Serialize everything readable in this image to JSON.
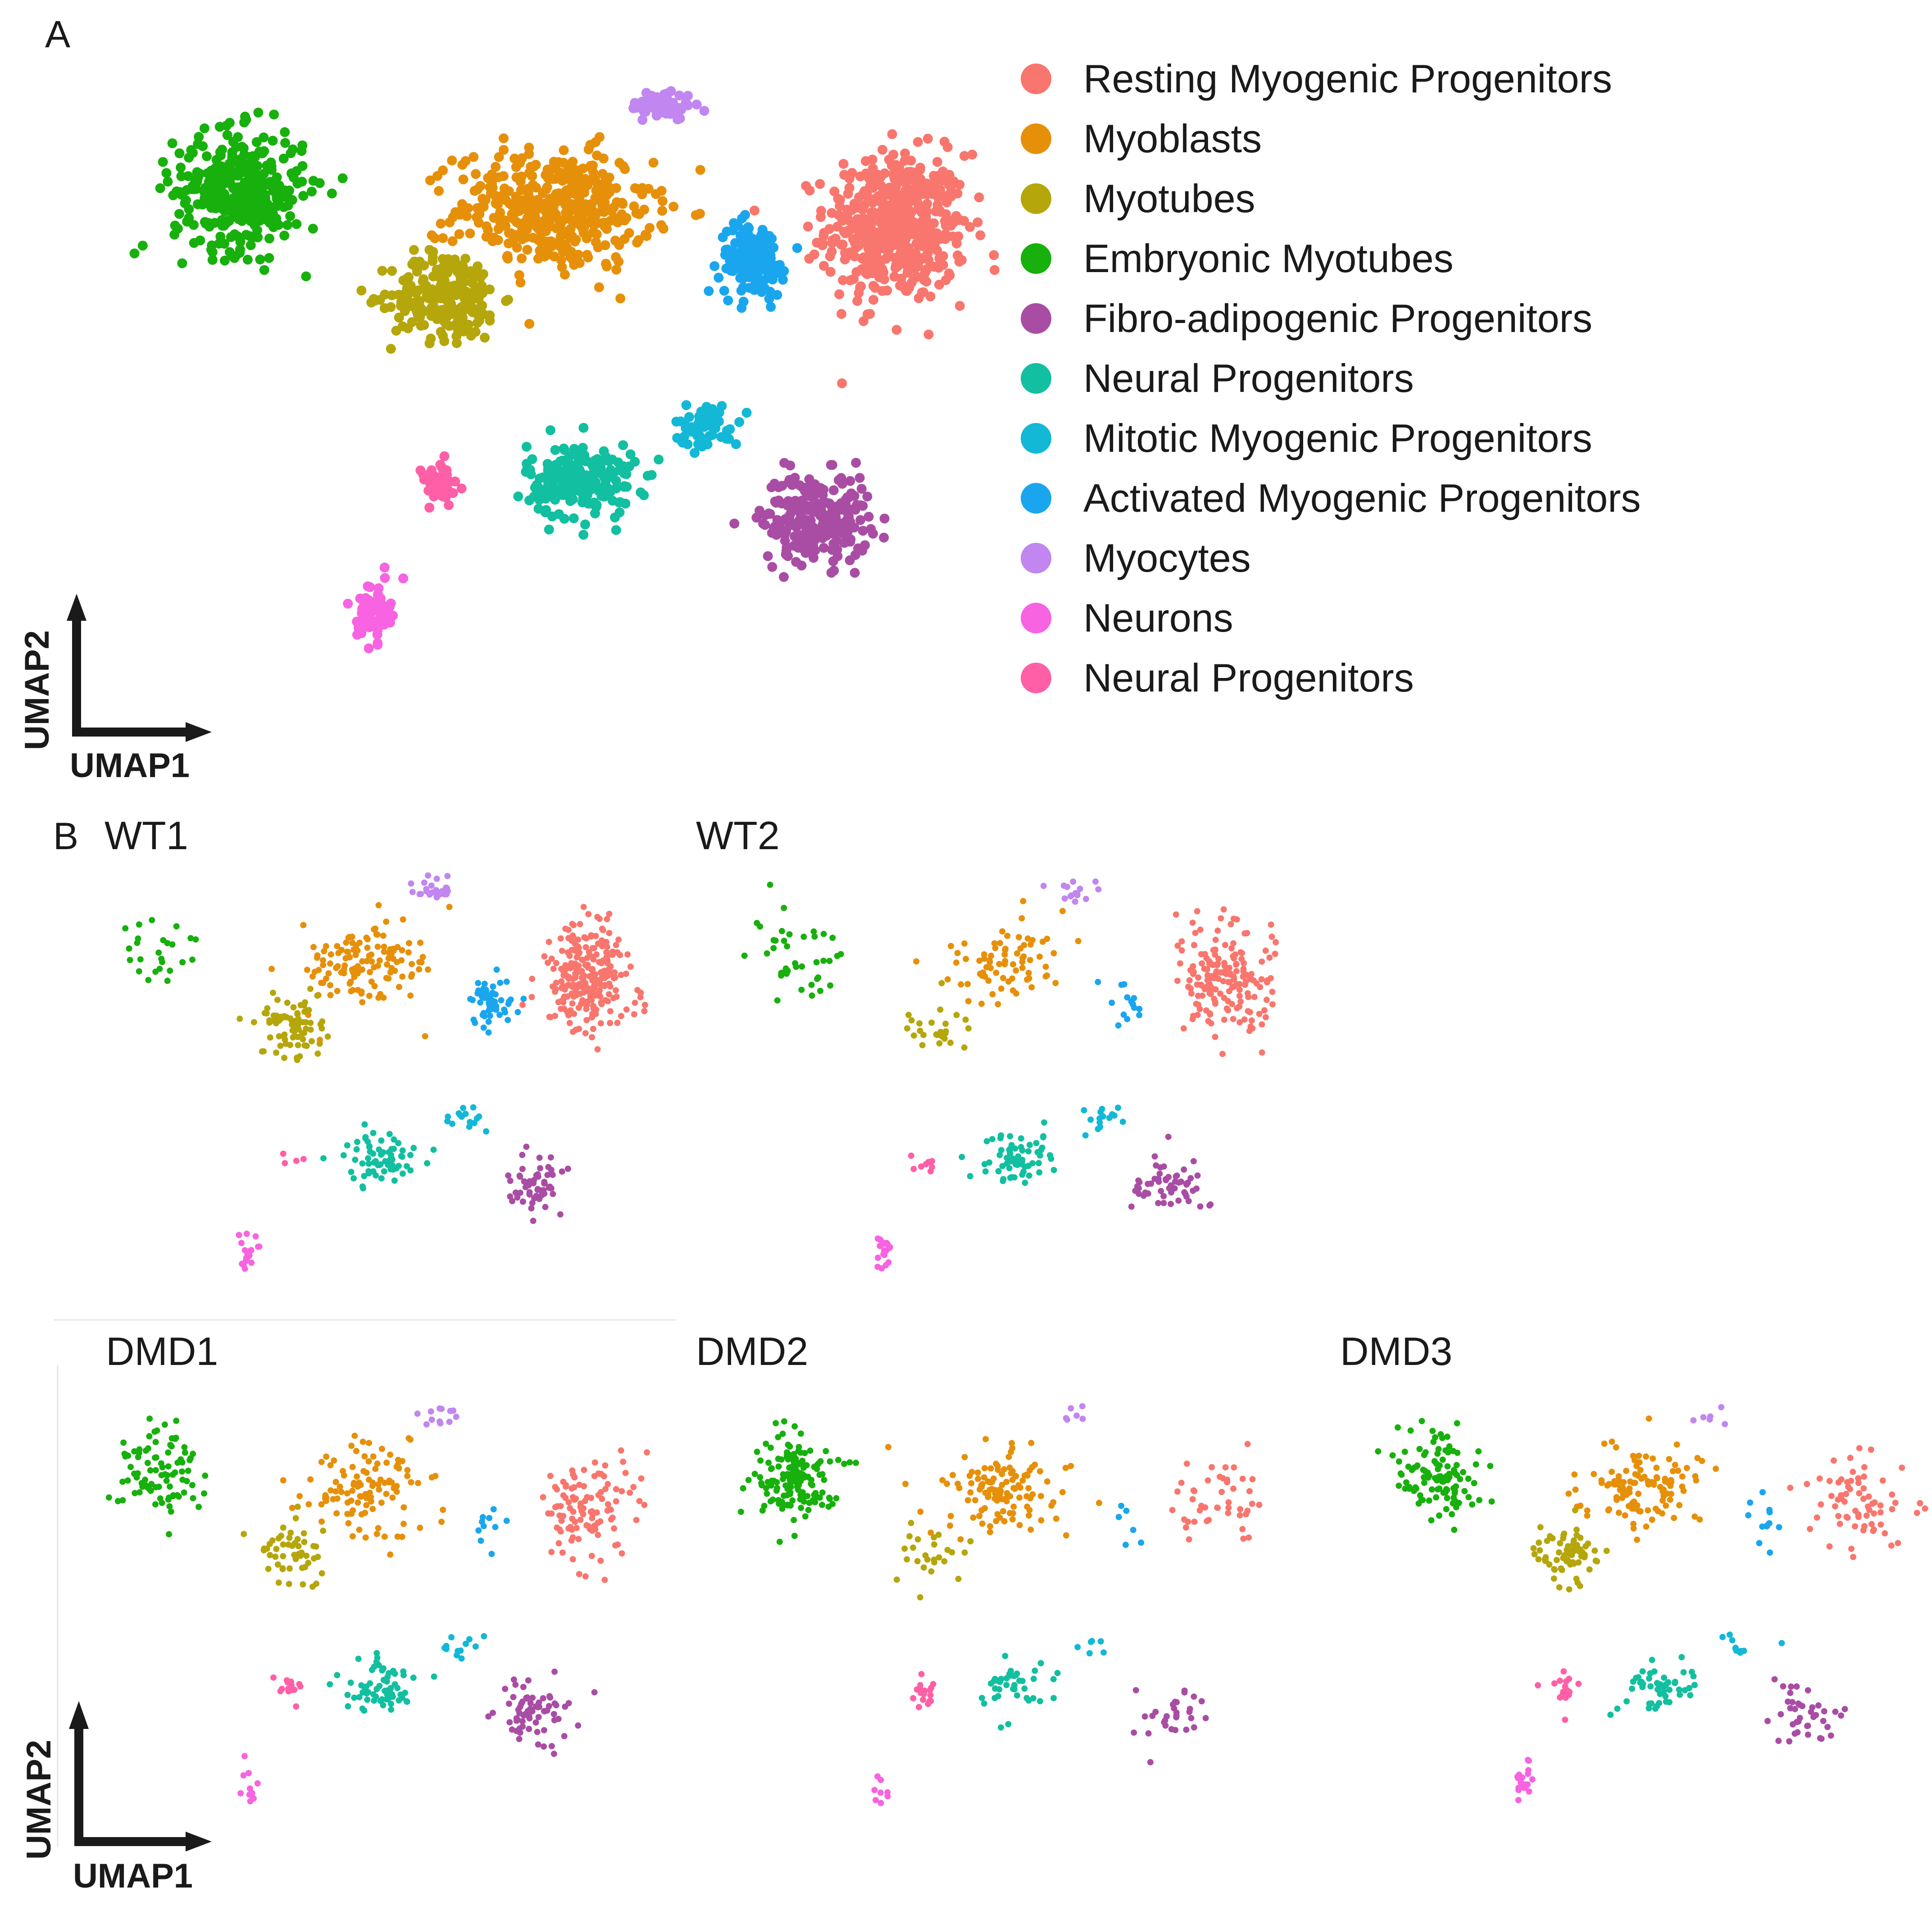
{
  "chart_data": [
    {
      "type": "scatter",
      "panel": "A",
      "title": "",
      "xlabel": "UMAP1",
      "ylabel": "UMAP2",
      "grid": false,
      "legend_position": "right",
      "xlim": [
        0,
        100
      ],
      "ylim": [
        0,
        100
      ],
      "series": [
        {
          "name": "Resting Myogenic Progenitors",
          "color": "#F8766D",
          "center": [
            88,
            74
          ],
          "spread": [
            6.5,
            10
          ],
          "n": 520
        },
        {
          "name": "Myoblasts",
          "color": "#E6900A",
          "center": [
            50,
            77
          ],
          "spread": [
            9,
            8
          ],
          "n": 430
        },
        {
          "name": "Myotubes",
          "color": "#B5A60C",
          "center": [
            38,
            63
          ],
          "spread": [
            5,
            6
          ],
          "n": 230
        },
        {
          "name": "Embryonic Myotubes",
          "color": "#17B00C",
          "center": [
            15,
            80
          ],
          "spread": [
            6,
            8
          ],
          "n": 360
        },
        {
          "name": "Fibro-adipogenic Progenitors",
          "color": "#A94DA4",
          "center": [
            79,
            27
          ],
          "spread": [
            5,
            6
          ],
          "n": 240
        },
        {
          "name": "Neural Progenitors",
          "color": "#12BFA0",
          "center": [
            53,
            33
          ],
          "spread": [
            5,
            5
          ],
          "n": 210
        },
        {
          "name": "Mitotic Myogenic Progenitors",
          "color": "#12B8D6",
          "center": [
            67,
            42
          ],
          "spread": [
            3,
            3
          ],
          "n": 60
        },
        {
          "name": "Activated Myogenic Progenitors",
          "color": "#1AA6EE",
          "center": [
            72,
            69
          ],
          "spread": [
            3,
            5
          ],
          "n": 150
        },
        {
          "name": "Myocytes",
          "color": "#C186F0",
          "center": [
            62,
            94
          ],
          "spread": [
            3,
            2
          ],
          "n": 70
        },
        {
          "name": "Neurons",
          "color": "#F763E0",
          "center": [
            30,
            12
          ],
          "spread": [
            1.5,
            4
          ],
          "n": 70
        },
        {
          "name": "Neural Progenitors",
          "color": "#FF5FA7",
          "center": [
            37,
            32
          ],
          "spread": [
            2,
            3
          ],
          "n": 60
        }
      ]
    },
    {
      "type": "scatter",
      "panel": "B",
      "title": "WT1",
      "series_sizes": {
        "Resting Myogenic Progenitors": 260,
        "Myoblasts": 130,
        "Myotubes": 80,
        "Embryonic Myotubes": 25,
        "Fibro-adipogenic Progenitors": 55,
        "Neural Progenitors": 70,
        "Mitotic Myogenic Progenitors": 15,
        "Activated Myogenic Progenitors": 55,
        "Myocytes": 25,
        "Neurons": 20,
        "Neural Progenitors ": 4
      }
    },
    {
      "type": "scatter",
      "panel": "B",
      "title": "WT2",
      "series_sizes": {
        "Resting Myogenic Progenitors": 180,
        "Myoblasts": 75,
        "Myotubes": 25,
        "Embryonic Myotubes": 40,
        "Fibro-adipogenic Progenitors": 55,
        "Neural Progenitors": 65,
        "Mitotic Myogenic Progenitors": 15,
        "Activated Myogenic Progenitors": 15,
        "Myocytes": 15,
        "Neurons": 20,
        "Neural Progenitors ": 8
      }
    },
    {
      "type": "scatter",
      "panel": "B",
      "title": "DMD1",
      "series_sizes": {
        "Resting Myogenic Progenitors": 110,
        "Myoblasts": 110,
        "Myotubes": 50,
        "Embryonic Myotubes": 90,
        "Fibro-adipogenic Progenitors": 75,
        "Neural Progenitors": 65,
        "Mitotic Myogenic Progenitors": 12,
        "Activated Myogenic Progenitors": 10,
        "Myocytes": 12,
        "Neurons": 10,
        "Neural Progenitors ": 15
      }
    },
    {
      "type": "scatter",
      "panel": "B",
      "title": "DMD2",
      "series_sizes": {
        "Resting Myogenic Progenitors": 45,
        "Myoblasts": 120,
        "Myotubes": 25,
        "Embryonic Myotubes": 150,
        "Fibro-adipogenic Progenitors": 30,
        "Neural Progenitors": 40,
        "Mitotic Myogenic Progenitors": 6,
        "Activated Myogenic Progenitors": 6,
        "Myocytes": 6,
        "Neurons": 8,
        "Neural Progenitors ": 18
      }
    },
    {
      "type": "scatter",
      "panel": "B",
      "title": "DMD3",
      "series_sizes": {
        "Resting Myogenic Progenitors": 70,
        "Myoblasts": 120,
        "Myotubes": 65,
        "Embryonic Myotubes": 110,
        "Fibro-adipogenic Progenitors": 40,
        "Neural Progenitors": 50,
        "Mitotic Myogenic Progenitors": 10,
        "Activated Myogenic Progenitors": 12,
        "Myocytes": 6,
        "Neurons": 20,
        "Neural Progenitors ": 18
      }
    }
  ],
  "labels": {
    "panel_a": "A",
    "panel_b": "B",
    "umap1": "UMAP1",
    "umap2": "UMAP2"
  }
}
